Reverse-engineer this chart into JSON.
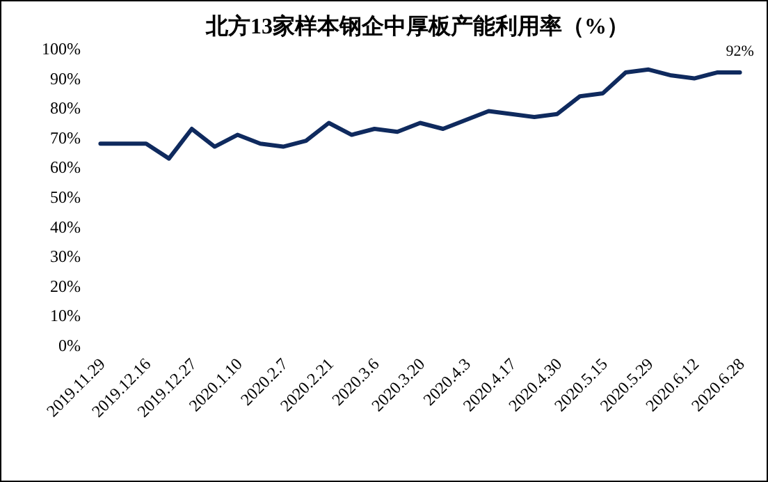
{
  "chart_data": {
    "type": "line",
    "title": "北方13家样本钢企中厚板产能利用率（%）",
    "categories": [
      "2019.11.29",
      null,
      "2019.12.16",
      null,
      "2019.12.27",
      null,
      "2020.1.10",
      null,
      "2020.2.7",
      null,
      "2020.2.21",
      null,
      "2020.3.6",
      null,
      "2020.3.20",
      null,
      "2020.4.3",
      null,
      "2020.4.17",
      null,
      "2020.4.30",
      null,
      "2020.5.15",
      null,
      "2020.5.29",
      null,
      "2020.6.12",
      null,
      "2020.6.28"
    ],
    "series": [
      {
        "color": "#0f2a5e",
        "values": [
          68,
          68,
          68,
          63,
          73,
          67,
          71,
          68,
          67,
          69,
          75,
          71,
          73,
          72,
          75,
          73,
          76,
          79,
          78,
          77,
          78,
          84,
          85,
          92,
          93,
          91,
          90,
          92,
          92
        ],
        "value_labels": [
          null,
          null,
          null,
          null,
          null,
          null,
          null,
          null,
          null,
          null,
          null,
          null,
          null,
          null,
          null,
          null,
          null,
          null,
          null,
          null,
          null,
          null,
          null,
          null,
          null,
          null,
          null,
          null,
          "92%"
        ]
      }
    ],
    "ylim": [
      0,
      100
    ],
    "yticks": [
      {
        "value": 0,
        "label": "0%"
      },
      {
        "value": 10,
        "label": "10%"
      },
      {
        "value": 20,
        "label": "20%"
      },
      {
        "value": 30,
        "label": "30%"
      },
      {
        "value": 40,
        "label": "40%"
      },
      {
        "value": 50,
        "label": "50%"
      },
      {
        "value": 60,
        "label": "60%"
      },
      {
        "value": 70,
        "label": "70%"
      },
      {
        "value": 80,
        "label": "80%"
      },
      {
        "value": 90,
        "label": "90%"
      },
      {
        "value": 100,
        "label": "100%"
      }
    ],
    "grid": false,
    "marker": "none",
    "line_style": "solid"
  }
}
